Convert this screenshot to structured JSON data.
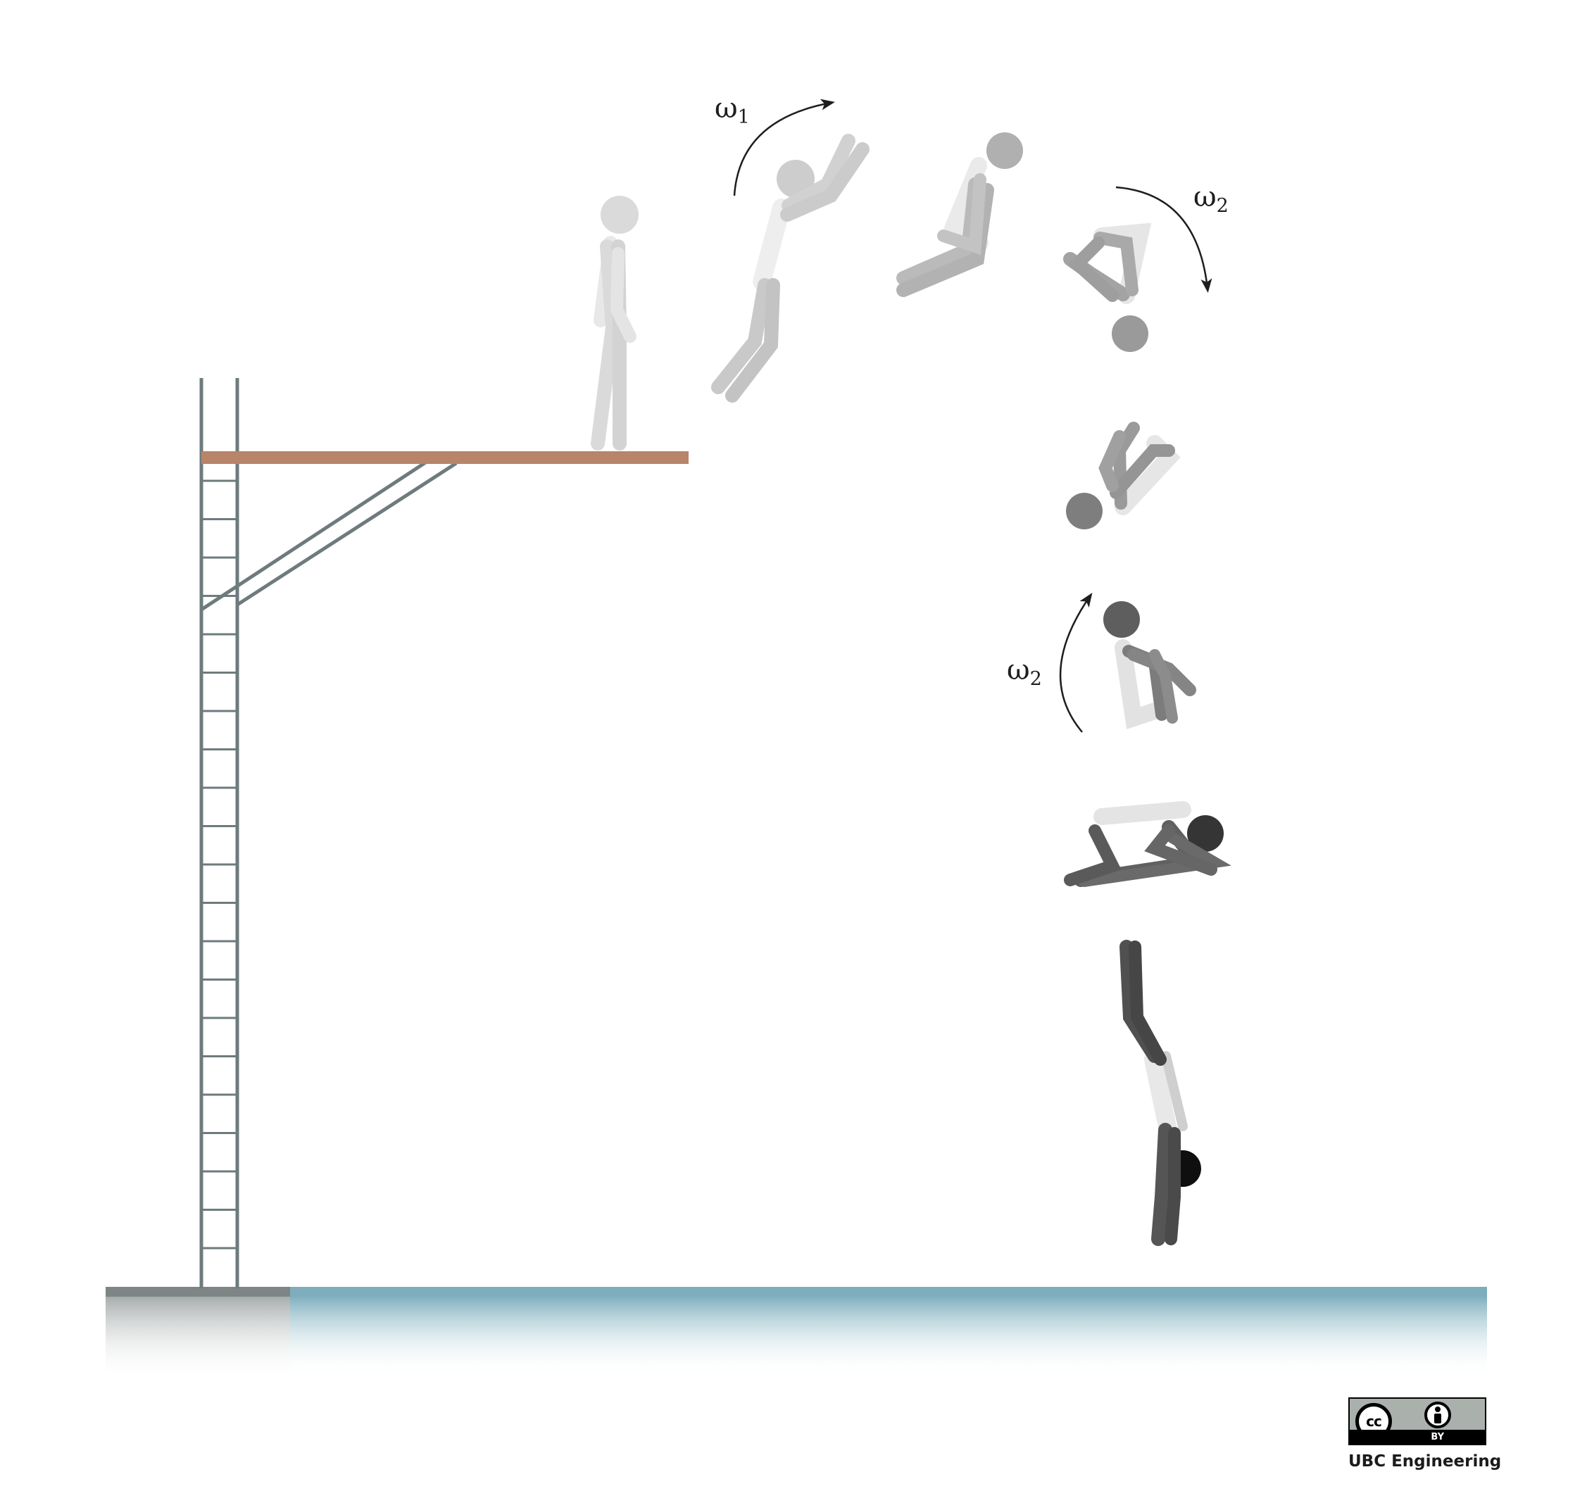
{
  "labels": {
    "omega_1": {
      "symbol": "ω",
      "subscript": "1"
    },
    "omega_2_top": {
      "symbol": "ω",
      "subscript": "2"
    },
    "omega_2_lower": {
      "symbol": "ω",
      "subscript": "2"
    }
  },
  "license": {
    "badge_text": "BY",
    "cc_text": "cc",
    "credit": "UBC Engineering"
  },
  "colors": {
    "board": "#b8846a",
    "tower": "#6e7b7d",
    "water": "#7eadbc",
    "deck": "#7d8585",
    "arrow": "#1e1e1e"
  },
  "diver_frames": [
    {
      "pose": "standing",
      "shade": "#dadada"
    },
    {
      "pose": "take-off",
      "shade": "#cdcdcd"
    },
    {
      "pose": "pike-rotation",
      "shade": "#bababa"
    },
    {
      "pose": "tuck-inverted",
      "shade": "#a3a3a3"
    },
    {
      "pose": "tuck-rotating",
      "shade": "#959595"
    },
    {
      "pose": "tuck-upright",
      "shade": "#7c7c7c"
    },
    {
      "pose": "tuck-horizontal",
      "shade": "#606060"
    },
    {
      "pose": "entry",
      "shade": "#3c3c3c"
    }
  ]
}
